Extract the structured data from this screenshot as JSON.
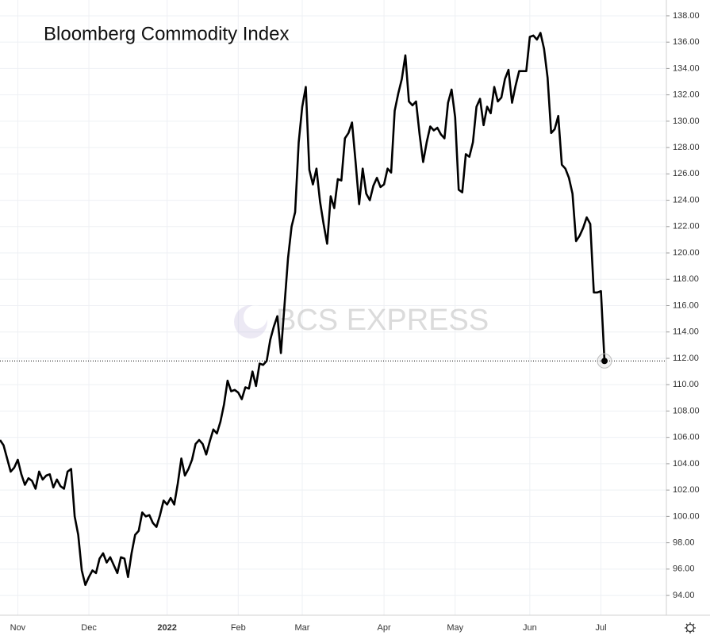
{
  "chart_data": {
    "type": "line",
    "title": "Bloomberg Commodity Index",
    "watermark": "BCS EXPRESS",
    "categories": [
      null,
      null,
      null,
      null,
      null,
      "Nov",
      null,
      null,
      null,
      null,
      null,
      null,
      null,
      null,
      null,
      null,
      null,
      null,
      null,
      null,
      null,
      null,
      null,
      null,
      null,
      "Dec",
      null,
      null,
      null,
      null,
      null,
      null,
      null,
      null,
      null,
      null,
      null,
      null,
      null,
      null,
      null,
      null,
      null,
      null,
      null,
      null,
      null,
      "2022",
      null,
      null,
      null,
      null,
      null,
      null,
      null,
      null,
      null,
      null,
      null,
      null,
      null,
      null,
      null,
      null,
      null,
      null,
      null,
      "Feb",
      null,
      null,
      null,
      null,
      null,
      null,
      null,
      null,
      null,
      null,
      null,
      null,
      null,
      null,
      null,
      null,
      null,
      "Mar",
      null,
      null,
      null,
      null,
      null,
      null,
      null,
      null,
      null,
      null,
      null,
      null,
      null,
      null,
      null,
      null,
      null,
      null,
      null,
      null,
      null,
      null,
      "Apr",
      null,
      null,
      null,
      null,
      null,
      null,
      null,
      null,
      null,
      null,
      null,
      null,
      null,
      null,
      null,
      null,
      null,
      null,
      null,
      "May",
      null,
      null,
      null,
      null,
      null,
      null,
      null,
      null,
      null,
      null,
      null,
      null,
      null,
      null,
      null,
      null,
      null,
      null,
      null,
      null,
      "Jun",
      null,
      null,
      null,
      null,
      null,
      null,
      null,
      null,
      null,
      null,
      null,
      null,
      null,
      null,
      null,
      null,
      null,
      null,
      null,
      "Jul",
      null
    ],
    "series": [
      {
        "name": "Bloomberg Commodity Index",
        "color": "#000000",
        "values": [
          105.8,
          105.4,
          104.4,
          103.4,
          103.7,
          104.3,
          103.2,
          102.4,
          102.9,
          102.7,
          102.1,
          103.4,
          102.8,
          103.1,
          103.2,
          102.2,
          102.8,
          102.3,
          102.1,
          103.4,
          103.6,
          100.0,
          98.6,
          95.9,
          94.8,
          95.4,
          95.9,
          95.7,
          96.8,
          97.2,
          96.5,
          96.9,
          96.3,
          95.7,
          96.9,
          96.8,
          95.4,
          97.2,
          98.6,
          98.9,
          100.3,
          100.0,
          100.1,
          99.5,
          99.2,
          100.1,
          101.2,
          100.9,
          101.4,
          100.9,
          102.5,
          104.4,
          103.1,
          103.6,
          104.3,
          105.5,
          105.8,
          105.5,
          104.7,
          105.7,
          106.6,
          106.3,
          107.2,
          108.5,
          110.3,
          109.5,
          109.6,
          109.4,
          108.9,
          109.8,
          109.7,
          111.0,
          109.9,
          111.6,
          111.5,
          111.8,
          113.4,
          114.4,
          115.2,
          112.4,
          116.0,
          119.6,
          122.0,
          123.1,
          128.4,
          131.1,
          132.6,
          126.3,
          125.2,
          126.4,
          123.9,
          122.2,
          120.7,
          124.3,
          123.4,
          125.6,
          125.5,
          128.7,
          129.1,
          129.9,
          126.9,
          123.7,
          126.4,
          124.5,
          124.0,
          125.1,
          125.7,
          125.0,
          125.2,
          126.4,
          126.1,
          130.8,
          132.1,
          133.2,
          135.0,
          131.5,
          131.2,
          131.5,
          129.0,
          126.9,
          128.4,
          129.6,
          129.3,
          129.5,
          129.0,
          128.7,
          131.4,
          132.4,
          130.3,
          124.8,
          124.6,
          127.5,
          127.3,
          128.4,
          131.1,
          131.7,
          129.7,
          131.1,
          130.6,
          132.6,
          131.5,
          131.8,
          133.2,
          133.9,
          131.4,
          132.7,
          133.8,
          133.8,
          133.8,
          136.4,
          136.5,
          136.2,
          136.7,
          135.5,
          133.3,
          129.1,
          129.4,
          130.4,
          126.7,
          126.4,
          125.7,
          124.5,
          120.9,
          121.3,
          121.9,
          122.7,
          122.2,
          117.0,
          117.0,
          117.1,
          111.8
        ]
      }
    ],
    "ylim": [
      92.5,
      139.2
    ],
    "yticks": [
      {
        "value": 94,
        "label": "94.00"
      },
      {
        "value": 96,
        "label": "96.00"
      },
      {
        "value": 98,
        "label": "98.00"
      },
      {
        "value": 100,
        "label": "100.00"
      },
      {
        "value": 102,
        "label": "102.00"
      },
      {
        "value": 104,
        "label": "104.00"
      },
      {
        "value": 106,
        "label": "106.00"
      },
      {
        "value": 108,
        "label": "108.00"
      },
      {
        "value": 110,
        "label": "110.00"
      },
      {
        "value": 112,
        "label": "112.00"
      },
      {
        "value": 114,
        "label": "114.00"
      },
      {
        "value": 116,
        "label": "116.00"
      },
      {
        "value": 118,
        "label": "118.00"
      },
      {
        "value": 120,
        "label": "120.00"
      },
      {
        "value": 122,
        "label": "122.00"
      },
      {
        "value": 124,
        "label": "124.00"
      },
      {
        "value": 126,
        "label": "126.00"
      },
      {
        "value": 128,
        "label": "128.00"
      },
      {
        "value": 130,
        "label": "130.00"
      },
      {
        "value": 132,
        "label": "132.00"
      },
      {
        "value": 134,
        "label": "134.00"
      },
      {
        "value": 136,
        "label": "136.00"
      },
      {
        "value": 138,
        "label": "138.00"
      }
    ],
    "grid": true,
    "last_value_line": true
  }
}
